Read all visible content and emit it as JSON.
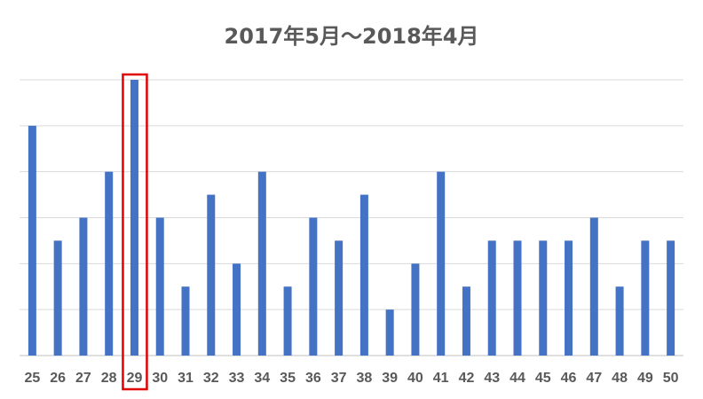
{
  "chart_data": {
    "type": "bar",
    "title": "2017年5月～2018年4月",
    "xlabel": "",
    "ylabel": "",
    "categories": [
      "25",
      "26",
      "27",
      "28",
      "29",
      "30",
      "31",
      "32",
      "33",
      "34",
      "35",
      "36",
      "37",
      "38",
      "39",
      "40",
      "41",
      "42",
      "43",
      "44",
      "45",
      "46",
      "47",
      "48",
      "49",
      "50"
    ],
    "values": [
      10,
      5,
      6,
      8,
      12,
      6,
      3,
      7,
      4,
      8,
      3,
      6,
      5,
      7,
      2,
      4,
      8,
      3,
      5,
      5,
      5,
      5,
      6,
      3,
      5,
      5
    ],
    "ylim": [
      0,
      12
    ],
    "y_tick_labels_visible": false,
    "grid": true,
    "bar_color": "#4472c4",
    "highlight": {
      "category": "29",
      "color": "#e00000"
    }
  }
}
